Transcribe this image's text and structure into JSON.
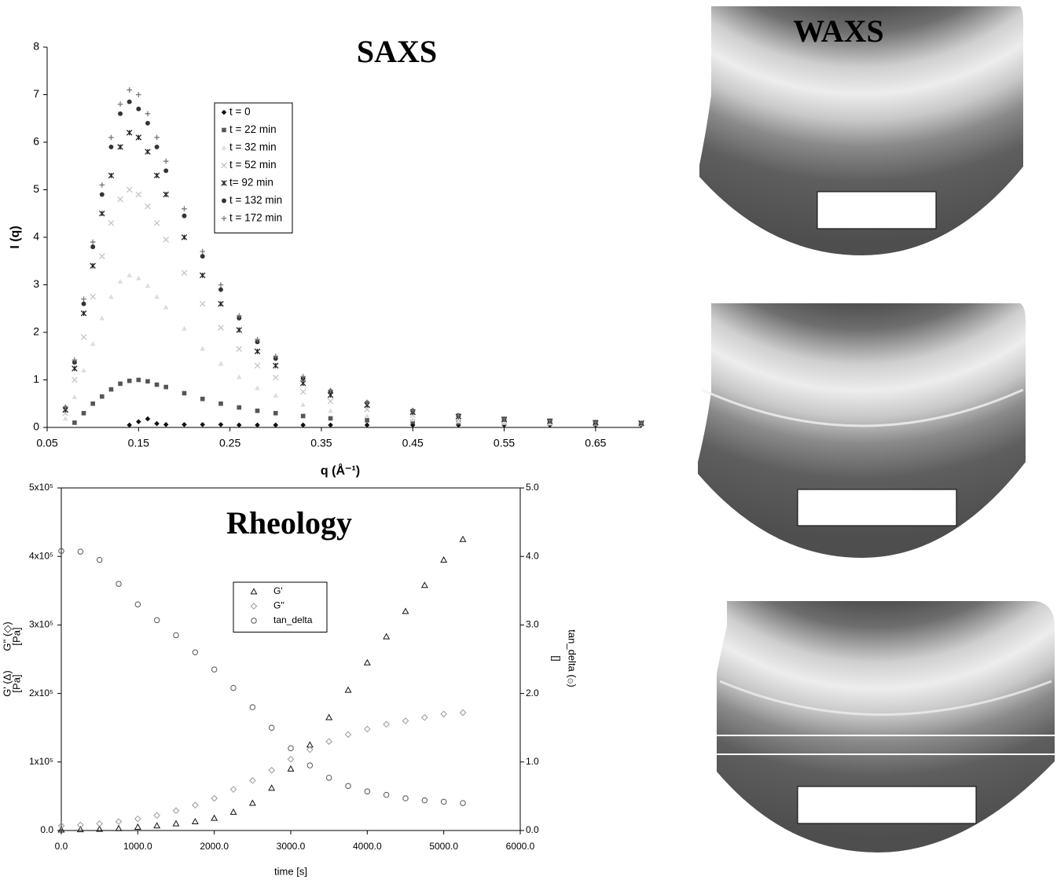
{
  "chart_data": [
    {
      "type": "scatter",
      "title": "SAXS",
      "xlabel": "q (Å⁻¹)",
      "ylabel": "I (q)",
      "xlim": [
        0.05,
        0.7
      ],
      "xticks": [
        0.05,
        0.15,
        0.25,
        0.35,
        0.45,
        0.55,
        0.65
      ],
      "ylim": [
        0,
        8
      ],
      "yticks": [
        0,
        1,
        2,
        3,
        4,
        5,
        6,
        7,
        8
      ],
      "x": [
        0.07,
        0.08,
        0.09,
        0.1,
        0.11,
        0.12,
        0.13,
        0.14,
        0.15,
        0.16,
        0.17,
        0.18,
        0.2,
        0.22,
        0.24,
        0.26,
        0.28,
        0.3,
        0.33,
        0.36,
        0.4,
        0.45,
        0.5,
        0.55,
        0.6,
        0.65,
        0.7
      ],
      "series": [
        {
          "name": "t = 0",
          "color": "#111111",
          "marker": "diamond",
          "values": [
            null,
            null,
            null,
            null,
            null,
            null,
            null,
            0.05,
            0.12,
            0.18,
            0.08,
            0.06,
            0.06,
            0.06,
            0.06,
            0.05,
            0.05,
            0.05,
            0.05,
            0.05,
            0.05,
            0.05,
            0.05,
            0.05,
            0.05,
            0.05,
            0.05
          ]
        },
        {
          "name": "t = 22 min",
          "color": "#555555",
          "marker": "square",
          "values": [
            null,
            0.1,
            0.3,
            0.5,
            0.65,
            0.8,
            0.92,
            0.98,
            1.0,
            0.97,
            0.9,
            0.85,
            0.72,
            0.6,
            0.5,
            0.42,
            0.35,
            0.3,
            0.24,
            0.19,
            0.15,
            0.12,
            0.1,
            0.09,
            0.08,
            0.07,
            0.07
          ]
        },
        {
          "name": "t = 32 min",
          "color": "#dddddd",
          "marker": "triangle",
          "values": [
            0.19,
            0.64,
            1.2,
            1.76,
            2.3,
            2.75,
            3.07,
            3.2,
            3.14,
            2.98,
            2.75,
            2.53,
            2.08,
            1.66,
            1.34,
            1.06,
            0.83,
            0.67,
            0.48,
            0.35,
            0.24,
            0.17,
            0.13,
            0.1,
            0.09,
            0.08,
            0.07
          ]
        },
        {
          "name": "t = 52 min",
          "color": "#c4c4c4",
          "marker": "x",
          "values": [
            0.3,
            1.0,
            1.9,
            2.75,
            3.6,
            4.3,
            4.8,
            5.0,
            4.9,
            4.65,
            4.3,
            3.95,
            3.25,
            2.6,
            2.1,
            1.65,
            1.3,
            1.05,
            0.75,
            0.55,
            0.38,
            0.26,
            0.19,
            0.14,
            0.11,
            0.09,
            0.08
          ]
        },
        {
          "name": "t= 92 min",
          "color": "#222222",
          "marker": "star",
          "values": [
            0.37,
            1.24,
            2.4,
            3.4,
            4.5,
            5.3,
            5.9,
            6.2,
            6.1,
            5.8,
            5.3,
            4.9,
            4.0,
            3.2,
            2.6,
            2.05,
            1.6,
            1.3,
            0.93,
            0.68,
            0.47,
            0.32,
            0.23,
            0.17,
            0.13,
            0.1,
            0.09
          ]
        },
        {
          "name": "t = 132 min",
          "color": "#333333",
          "marker": "circle",
          "values": [
            0.41,
            1.37,
            2.6,
            3.8,
            4.9,
            5.9,
            6.6,
            6.85,
            6.7,
            6.4,
            5.9,
            5.4,
            4.45,
            3.6,
            2.9,
            2.3,
            1.8,
            1.45,
            1.03,
            0.76,
            0.52,
            0.35,
            0.25,
            0.18,
            0.14,
            0.11,
            0.09
          ]
        },
        {
          "name": "t = 172 min",
          "color": "#777777",
          "marker": "plus",
          "values": [
            0.43,
            1.42,
            2.7,
            3.9,
            5.1,
            6.1,
            6.8,
            7.1,
            7.0,
            6.6,
            6.1,
            5.6,
            4.6,
            3.7,
            3.0,
            2.35,
            1.85,
            1.5,
            1.07,
            0.78,
            0.53,
            0.36,
            0.25,
            0.18,
            0.14,
            0.11,
            0.09
          ]
        }
      ]
    },
    {
      "type": "scatter",
      "title": "Rheology",
      "xlabel": "time [s]",
      "ylabels": [
        {
          "text": [
            "G' (Δ)",
            "[Pa]"
          ],
          "color": "#111111"
        },
        {
          "text": [
            "G'' (◇)",
            "[Pa]"
          ],
          "color": "#999999"
        }
      ],
      "y2label": [
        "tan_delta (۞)",
        "[]"
      ],
      "xlim": [
        0,
        6000
      ],
      "xticks": [
        {
          "value": 0,
          "label": "0.0"
        },
        {
          "value": 1000,
          "label": "1000.0"
        },
        {
          "value": 2000,
          "label": "2000.0"
        },
        {
          "value": 3000,
          "label": "3000.0"
        },
        {
          "value": 4000,
          "label": "4000.0"
        },
        {
          "value": 5000,
          "label": "5000.0"
        },
        {
          "value": 6000,
          "label": "6000.0"
        }
      ],
      "ylim": [
        0,
        500000
      ],
      "yticks": [
        {
          "value": 0,
          "label": "0.0"
        },
        {
          "value": 100000,
          "label": "1x10⁵"
        },
        {
          "value": 200000,
          "label": "2x10⁵"
        },
        {
          "value": 300000,
          "label": "3x10⁵"
        },
        {
          "value": 400000,
          "label": "4x10⁵"
        },
        {
          "value": 500000,
          "label": "5x10⁵"
        }
      ],
      "y2lim": [
        0,
        5
      ],
      "y2ticks": [
        {
          "value": 0,
          "label": "0.0"
        },
        {
          "value": 1,
          "label": "1.0"
        },
        {
          "value": 2,
          "label": "2.0"
        },
        {
          "value": 3,
          "label": "3.0"
        },
        {
          "value": 4,
          "label": "4.0"
        },
        {
          "value": 5,
          "label": "5.0"
        }
      ],
      "x": [
        0,
        250,
        500,
        750,
        1000,
        1250,
        1500,
        1750,
        2000,
        2250,
        2500,
        2750,
        3000,
        3250,
        3500,
        3750,
        4000,
        4250,
        4500,
        4750,
        5000,
        5250
      ],
      "series": [
        {
          "name": "G'",
          "color": "#111111",
          "marker": "triangle-open",
          "values": [
            1000,
            1500,
            2000,
            3000,
            5000,
            7000,
            10000,
            13000,
            18000,
            27000,
            40000,
            62000,
            90000,
            125000,
            165000,
            205000,
            245000,
            283000,
            320000,
            358000,
            395000,
            425000
          ]
        },
        {
          "name": "G''",
          "color": "#999999",
          "marker": "diamond-open",
          "values": [
            7000,
            8000,
            10000,
            13000,
            17000,
            22000,
            29000,
            37000,
            47000,
            60000,
            73000,
            88000,
            104000,
            118000,
            130000,
            140000,
            148000,
            155000,
            160000,
            165000,
            170000,
            172000
          ]
        },
        {
          "name": "tan_delta",
          "color": "#555555",
          "marker": "circle-open",
          "axis": "y2",
          "values": [
            4.08,
            4.07,
            3.95,
            3.6,
            3.3,
            3.07,
            2.85,
            2.6,
            2.35,
            2.08,
            1.8,
            1.5,
            1.2,
            0.95,
            0.77,
            0.65,
            0.57,
            0.52,
            0.47,
            0.44,
            0.42,
            0.4
          ]
        }
      ]
    }
  ],
  "waxs": {
    "title": "WAXS"
  }
}
